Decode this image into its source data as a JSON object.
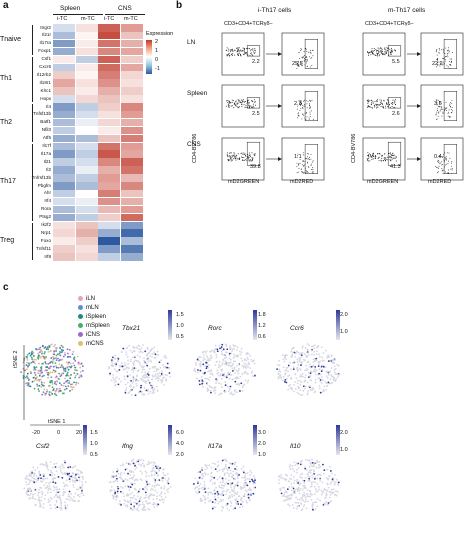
{
  "panel_a": {
    "label": "a",
    "col_groups": [
      "Spleen",
      "CNS"
    ],
    "cols": [
      "i-TC",
      "m-TC",
      "i-TC",
      "m-TC"
    ],
    "groups": [
      {
        "name": "Tnaive",
        "genes": [
          "Itrgr2",
          "Il21r",
          "Il17ra",
          "Foxp1"
        ]
      },
      {
        "name": "Th1",
        "genes": [
          "Csf1",
          "Cxcr6",
          "Il12rb2",
          "Il18r1",
          "Klrc1",
          "Hopx"
        ]
      },
      {
        "name": "Th2",
        "genes": [
          "Il4",
          "Tnfsf13b",
          "Batf1",
          "Nfil3",
          "Atf5"
        ]
      },
      {
        "name": "Th17",
        "genes": [
          "Il17f",
          "Il17a",
          "Il21",
          "Il2",
          "Tnfrsf13b",
          "Pbgfm",
          "Ahr",
          "Irf4",
          "Rora",
          "Ptsg2"
        ]
      },
      {
        "name": "Treg",
        "genes": [
          "Ikzf2",
          "Nrp1",
          "Foxo",
          "Tnfsf11",
          "Irf8"
        ]
      }
    ],
    "values": [
      [
        -0.2,
        0.3,
        1.6,
        1.0
      ],
      [
        -0.4,
        0.1,
        1.8,
        0.6
      ],
      [
        -0.6,
        0.2,
        1.4,
        0.8
      ],
      [
        -0.5,
        0.3,
        1.2,
        0.9
      ],
      [
        0.2,
        -0.3,
        1.6,
        0.5
      ],
      [
        -0.3,
        0.2,
        1.5,
        0.9
      ],
      [
        0.5,
        0.1,
        1.3,
        0.4
      ],
      [
        0.9,
        0.3,
        1.1,
        0.3
      ],
      [
        0.6,
        0.2,
        0.8,
        0.5
      ],
      [
        -0.2,
        0.4,
        0.6,
        0.3
      ],
      [
        -0.6,
        -0.3,
        0.5,
        1.2
      ],
      [
        -0.5,
        -0.2,
        0.3,
        1.0
      ],
      [
        -0.4,
        -0.1,
        0.4,
        0.8
      ],
      [
        -0.3,
        0.0,
        0.2,
        1.1
      ],
      [
        -0.5,
        -0.4,
        0.6,
        1.3
      ],
      [
        -0.4,
        -0.2,
        1.4,
        1.0
      ],
      [
        -0.6,
        -0.3,
        1.7,
        0.9
      ],
      [
        -0.3,
        -0.2,
        1.2,
        1.6
      ],
      [
        -0.5,
        -0.1,
        0.8,
        1.4
      ],
      [
        -0.4,
        -0.3,
        1.0,
        0.7
      ],
      [
        -0.6,
        -0.4,
        0.9,
        1.2
      ],
      [
        -0.3,
        0.0,
        1.3,
        0.6
      ],
      [
        -0.2,
        -0.1,
        1.1,
        0.8
      ],
      [
        -0.4,
        -0.2,
        0.7,
        1.0
      ],
      [
        -0.5,
        -0.3,
        0.5,
        1.5
      ],
      [
        0.3,
        0.6,
        -0.2,
        -0.6
      ],
      [
        0.4,
        0.8,
        -0.5,
        -0.9
      ],
      [
        0.2,
        0.5,
        -1.2,
        -0.4
      ],
      [
        0.5,
        0.3,
        -0.6,
        -0.8
      ],
      [
        0.6,
        0.4,
        -0.3,
        -0.5
      ]
    ],
    "legend": {
      "title": "Expression",
      "ticks": [
        "2",
        "1",
        "0",
        "-1"
      ]
    }
  },
  "panel_b": {
    "label": "b",
    "column_titles": [
      "i-Th17 cells",
      "m-Th17 cells"
    ],
    "gate_header": "CD3+CD4+TCRγδ−",
    "rows": [
      "LN",
      "Spleen",
      "CNS"
    ],
    "y_axis_label": "CD4-BV786",
    "x_axis_label": "mD2GREEN",
    "x_axis_label_right": "mD2RED",
    "i_first_gate": [
      "2.2",
      "2.5",
      "39.8"
    ],
    "i_second_gate": [
      "25.5",
      "2.3",
      "1.1"
    ],
    "m_first_gate": [
      "5.5",
      "2.6",
      "41.3"
    ],
    "m_second_gate": [
      "22.2",
      "3.5",
      "0.4"
    ]
  },
  "panel_c": {
    "label": "c",
    "legend": [
      {
        "name": "iLN",
        "color": "#e7a1c2"
      },
      {
        "name": "mLN",
        "color": "#5a8fd6"
      },
      {
        "name": "iSpleen",
        "color": "#1f8a7c"
      },
      {
        "name": "mSpleen",
        "color": "#3fb36a"
      },
      {
        "name": "iCNS",
        "color": "#9b6bc8"
      },
      {
        "name": "mCNS",
        "color": "#e0c06a"
      }
    ],
    "axis_y": "tSNE 2",
    "axis_x": "tSNE 1",
    "axis_ticks": [
      "-20",
      "0",
      "20"
    ],
    "genes": [
      {
        "name": "Tbx21",
        "ticks": [
          "1.5",
          "1.0",
          "0.5"
        ]
      },
      {
        "name": "Rorc",
        "ticks": [
          "1.8",
          "1.2",
          "0.6"
        ]
      },
      {
        "name": "Ccr6",
        "ticks": [
          "2.0",
          "1.0"
        ]
      },
      {
        "name": "Csf2",
        "ticks": [
          "1.5",
          "1.0",
          "0.5"
        ]
      },
      {
        "name": "Ifng",
        "ticks": [
          "6.0",
          "4.0",
          "2.0"
        ]
      },
      {
        "name": "Il17a",
        "ticks": [
          "3.0",
          "2.0",
          "1.0"
        ]
      },
      {
        "name": "Il10",
        "ticks": [
          "2.0",
          "1.0"
        ]
      }
    ]
  }
}
